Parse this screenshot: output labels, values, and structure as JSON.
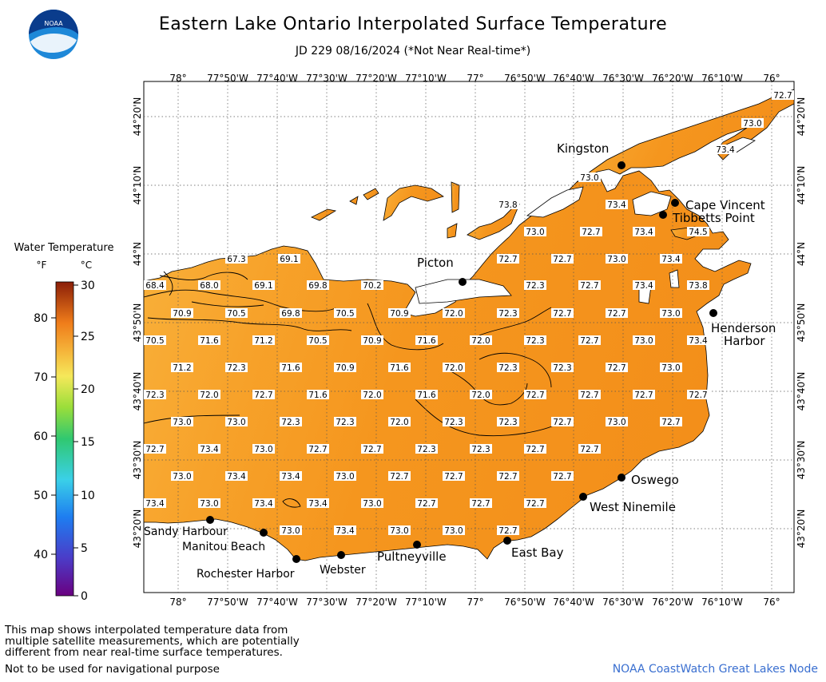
{
  "title": "Eastern Lake Ontario Interpolated Surface Temperature",
  "subtitle": "JD 229 08/16/2024 (*Not Near Real-time*)",
  "logo_text": "NOAA",
  "legend": {
    "title": "Water Temperature",
    "unit_f": "°F",
    "unit_c": "°C",
    "f_ticks": [
      "80",
      "70",
      "60",
      "50",
      "40"
    ],
    "c_ticks": [
      "30",
      "25",
      "20",
      "15",
      "10",
      "5",
      "0"
    ]
  },
  "axes": {
    "lon_labels": [
      "78°",
      "77°50'W",
      "77°40'W",
      "77°30'W",
      "77°20'W",
      "77°10'W",
      "77°",
      "76°50'W",
      "76°40'W",
      "76°30'W",
      "76°20'W",
      "76°10'W",
      "76°"
    ],
    "lat_labels": [
      "44°20'N",
      "44°10'N",
      "44°N",
      "43°50'N",
      "43°40'N",
      "43°30'N",
      "43°20'N"
    ]
  },
  "places": [
    "Kingston",
    "Cape Vincent",
    "Tibbetts Point",
    "Picton",
    "Henderson Harbor",
    "Oswego",
    "West Ninemile",
    "East Bay",
    "Pultneyville",
    "Webster",
    "Rochester Harbor",
    "Manitou Beach",
    "Sandy Harbour"
  ],
  "temperature_labels": [
    "72.7",
    "73.0",
    "73.4",
    "73.0",
    "73.8",
    "73.4",
    "73.0",
    "72.7",
    "73.4",
    "74.5",
    "67.3",
    "69.1",
    "72.7",
    "72.7",
    "73.0",
    "73.4",
    "68.4",
    "68.0",
    "69.1",
    "69.8",
    "70.2",
    "72.3",
    "72.7",
    "73.4",
    "73.8",
    "70.9",
    "70.5",
    "69.8",
    "70.5",
    "70.9",
    "72.0",
    "72.3",
    "72.7",
    "72.7",
    "73.0",
    "70.5",
    "71.6",
    "71.2",
    "70.5",
    "70.9",
    "71.6",
    "72.0",
    "72.3",
    "72.7",
    "73.0",
    "73.4",
    "71.2",
    "72.3",
    "71.6",
    "70.9",
    "71.6",
    "72.0",
    "72.3",
    "72.3",
    "72.7",
    "73.0",
    "72.3",
    "72.0",
    "72.7",
    "71.6",
    "72.0",
    "71.6",
    "72.0",
    "72.7",
    "72.7",
    "72.7",
    "72.7",
    "73.0",
    "73.0",
    "72.3",
    "72.3",
    "72.0",
    "72.3",
    "72.3",
    "72.7",
    "73.0",
    "72.7",
    "72.7",
    "73.4",
    "73.0",
    "72.7",
    "72.7",
    "72.3",
    "72.3",
    "72.7",
    "72.7",
    "73.0",
    "73.4",
    "73.4",
    "73.0",
    "72.7",
    "72.7",
    "72.7",
    "72.7",
    "73.4",
    "73.0",
    "73.4",
    "73.4",
    "73.0",
    "72.7",
    "72.7",
    "72.7",
    "73.0",
    "73.4",
    "73.0",
    "73.0",
    "72.7"
  ],
  "notes": [
    "This map shows interpolated temperature data from",
    "multiple satellite measurements, which are potentially",
    "different from near real-time surface temperatures."
  ],
  "disclaimer": "Not to be used for navigational purpose",
  "credit": "NOAA CoastWatch Great Lakes Node",
  "colors": {
    "water": "#F5961E",
    "water_west": "#F9B43A",
    "land": "#ffffff",
    "credit": "#3a6fd0"
  }
}
